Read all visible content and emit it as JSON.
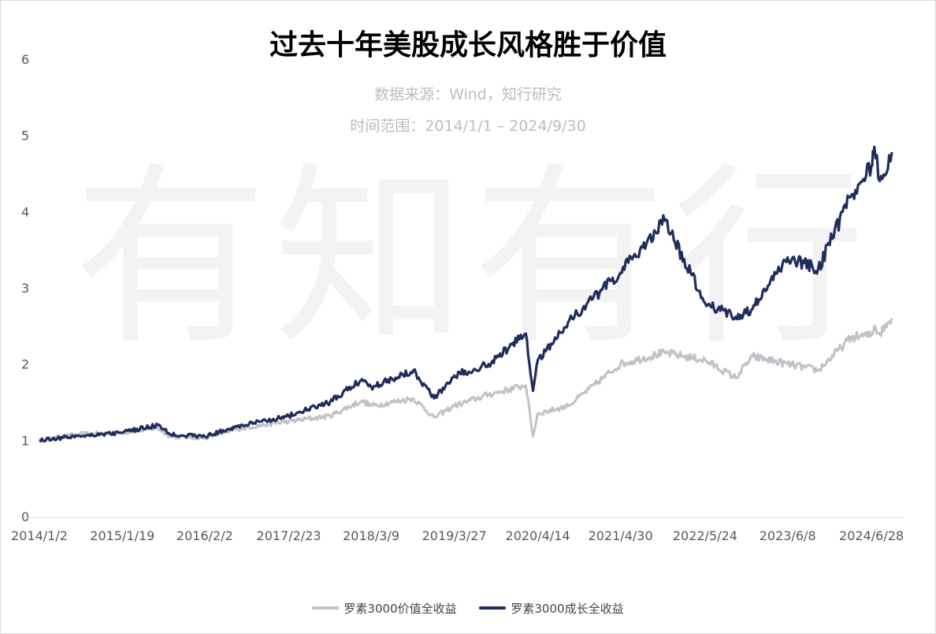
{
  "title": "过去十年美股成长风格胜于价值",
  "subtitle_source": "数据来源：Wind，知行研究",
  "subtitle_range": "时间范围：2014/1/1 – 2024/9/30",
  "watermark": "有知有行",
  "chart_data": {
    "type": "line",
    "title": "过去十年美股成长风格胜于价值",
    "xlabel": "",
    "ylabel": "",
    "ylim": [
      0,
      6
    ],
    "yticks": [
      "0",
      "1",
      "2",
      "3",
      "4",
      "5",
      "6"
    ],
    "xtick_labels": [
      "2014/1/2",
      "2015/1/19",
      "2016/2/2",
      "2017/2/23",
      "2018/3/9",
      "2019/3/27",
      "2020/4/14",
      "2021/4/30",
      "2022/5/24",
      "2023/6/8",
      "2024/6/28"
    ],
    "x": [
      "2014/1/2",
      "2014/7/1",
      "2015/1/19",
      "2015/7/1",
      "2015/8/25",
      "2016/2/2",
      "2016/7/1",
      "2017/2/23",
      "2017/9/1",
      "2018/1/26",
      "2018/3/9",
      "2018/9/20",
      "2018/12/24",
      "2019/3/27",
      "2019/9/1",
      "2020/2/19",
      "2020/3/23",
      "2020/4/14",
      "2020/9/1",
      "2021/4/30",
      "2021/11/19",
      "2022/5/24",
      "2022/10/12",
      "2022/12/28",
      "2023/6/8",
      "2023/10/27",
      "2024/3/28",
      "2024/6/28",
      "2024/7/11",
      "2024/8/5",
      "2024/9/30"
    ],
    "series": [
      {
        "name": "罗素3000价值全收益",
        "color": "#c0c2c9",
        "values": [
          1.0,
          1.08,
          1.1,
          1.16,
          1.05,
          1.03,
          1.15,
          1.25,
          1.32,
          1.52,
          1.45,
          1.55,
          1.3,
          1.45,
          1.6,
          1.72,
          1.05,
          1.35,
          1.45,
          2.0,
          2.15,
          2.05,
          1.82,
          2.1,
          2.0,
          1.92,
          2.35,
          2.38,
          2.5,
          2.4,
          2.6
        ]
      },
      {
        "name": "罗素3000成长全收益",
        "color": "#1f2d5c",
        "values": [
          1.0,
          1.06,
          1.1,
          1.2,
          1.08,
          1.05,
          1.18,
          1.32,
          1.5,
          1.8,
          1.7,
          1.92,
          1.55,
          1.85,
          2.0,
          2.4,
          1.65,
          2.05,
          2.55,
          3.2,
          3.88,
          2.8,
          2.62,
          2.72,
          3.4,
          3.25,
          4.22,
          4.6,
          4.85,
          4.4,
          4.78
        ]
      }
    ],
    "legend": "bottom",
    "grid": false
  }
}
